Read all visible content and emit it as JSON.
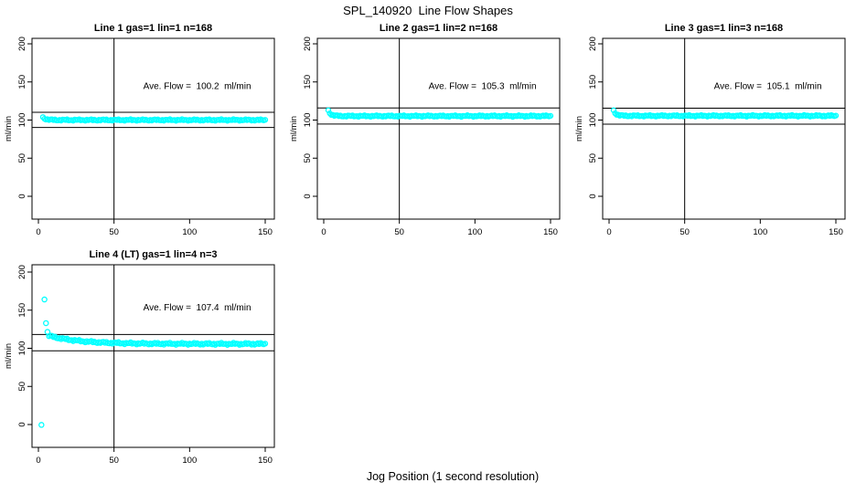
{
  "page": {
    "title": "SPL_140920  Line Flow Shapes",
    "xlabel": "Jog Position (1 second resolution)",
    "background_color": "#FFFFFF",
    "axis_color": "#000000",
    "marker_color": "#00FFFF"
  },
  "chart_data": [
    {
      "type": "scatter",
      "title": "Line 1 gas=1 lin=1 n=168",
      "n": 168,
      "ave_flow": 100.2,
      "annotation": "Ave. Flow =  100.2  ml/min",
      "annotation_pos": [
        105,
        141
      ],
      "ylabel": "ml/min",
      "x_ticks": [
        0,
        50,
        100,
        150
      ],
      "y_ticks": [
        0,
        50,
        100,
        150,
        200
      ],
      "x_range": [
        0,
        150
      ],
      "y_range": [
        0,
        200
      ],
      "ref_lines_y": [
        110.2,
        90.2
      ],
      "ref_line_x": 50,
      "outliers": [],
      "band": {
        "x_start": 3,
        "x_end": 150,
        "step": 1,
        "y_from": 103.5,
        "y_to": 100.1,
        "k": 0.5,
        "jitter": 0.9
      }
    },
    {
      "type": "scatter",
      "title": "Line 2 gas=1 lin=2 n=168",
      "n": 168,
      "ave_flow": 105.3,
      "annotation": "Ave. Flow =  105.3  ml/min",
      "annotation_pos": [
        105,
        141
      ],
      "ylabel": "ml/min",
      "x_ticks": [
        0,
        50,
        100,
        150
      ],
      "y_ticks": [
        0,
        50,
        100,
        150,
        200
      ],
      "x_range": [
        0,
        150
      ],
      "y_range": [
        0,
        200
      ],
      "ref_lines_y": [
        115.8,
        94.8
      ],
      "ref_line_x": 50,
      "outliers": [],
      "band": {
        "x_start": 3,
        "x_end": 150,
        "step": 1,
        "y_from": 112.5,
        "y_to": 105.3,
        "k": 0.6,
        "jitter": 0.9
      }
    },
    {
      "type": "scatter",
      "title": "Line 3 gas=1 lin=3 n=168",
      "n": 168,
      "ave_flow": 105.1,
      "annotation": "Ave. Flow =  105.1  ml/min",
      "annotation_pos": [
        105,
        141
      ],
      "ylabel": "ml/min",
      "x_ticks": [
        0,
        50,
        100,
        150
      ],
      "y_ticks": [
        0,
        50,
        100,
        150,
        200
      ],
      "x_range": [
        0,
        150
      ],
      "y_range": [
        0,
        200
      ],
      "ref_lines_y": [
        115.6,
        94.6
      ],
      "ref_line_x": 50,
      "outliers": [],
      "band": {
        "x_start": 3,
        "x_end": 150,
        "step": 1,
        "y_from": 112.5,
        "y_to": 105.6,
        "k": 0.6,
        "jitter": 0.9
      }
    },
    {
      "type": "scatter",
      "title": "Line 4 (LT) gas=1 lin=4 n=3",
      "n": 3,
      "ave_flow": 107.4,
      "annotation": "Ave. Flow =  107.4  ml/min",
      "annotation_pos": [
        105,
        150
      ],
      "ylabel": "ml/min",
      "x_ticks": [
        0,
        50,
        100,
        150
      ],
      "y_ticks": [
        0,
        50,
        100,
        150,
        200
      ],
      "x_range": [
        0,
        150
      ],
      "y_range": [
        0,
        200
      ],
      "ref_lines_y": [
        118.1,
        96.7
      ],
      "ref_line_x": 50,
      "outliers": [
        [
          2,
          -0.5
        ],
        [
          4,
          164
        ],
        [
          5,
          133
        ],
        [
          6,
          121.5
        ]
      ],
      "band": {
        "x_start": 7,
        "x_end": 150,
        "step": 1,
        "y_from": 116.5,
        "y_to": 105.8,
        "k": 0.05,
        "jitter": 1.2
      }
    }
  ]
}
